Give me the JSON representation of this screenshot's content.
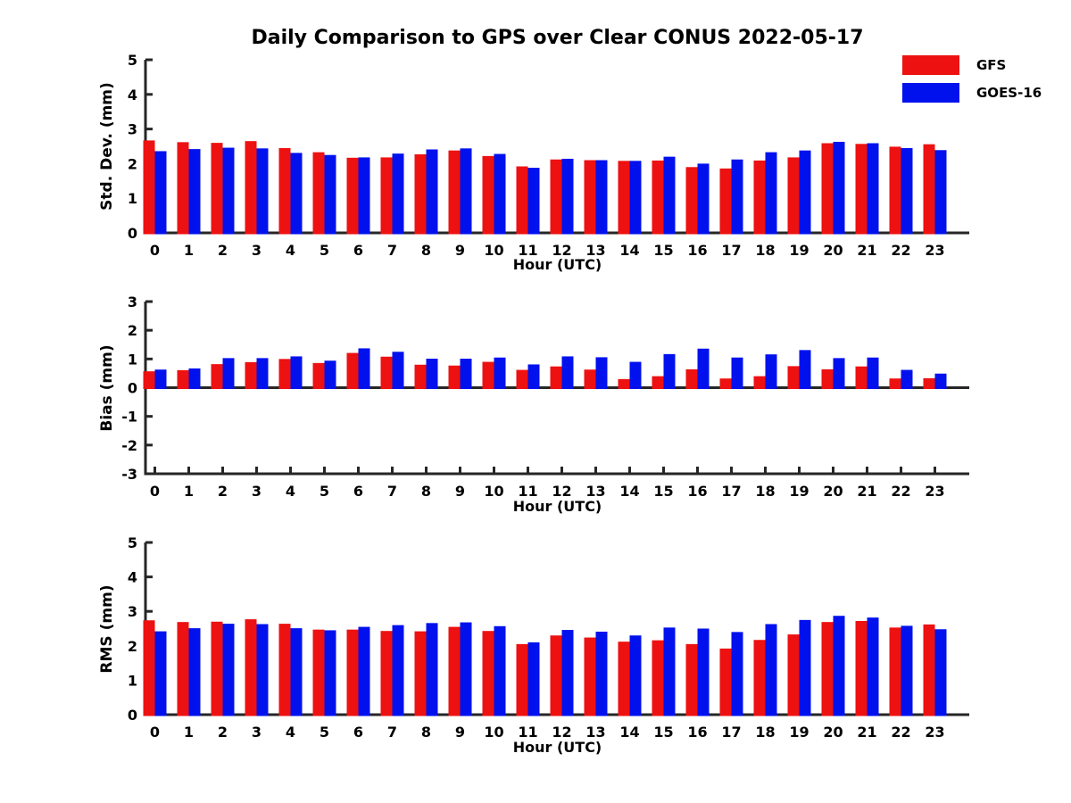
{
  "title": "Daily Comparison to GPS over Clear CONUS 2022-05-17",
  "colors": {
    "gfs_red": "#ee1111",
    "goes_blue": "#0011ee",
    "axis": "#262626",
    "text": "#000000",
    "background": "#ffffff"
  },
  "legend": {
    "items": [
      {
        "label": "GFS",
        "color": "#ee1111"
      },
      {
        "label": "GOES-16",
        "color": "#0011ee"
      }
    ]
  },
  "chart_data": [
    {
      "type": "bar",
      "title": "",
      "ylabel": "Std. Dev. (mm)",
      "xlabel": "Hour (UTC)",
      "ylim": [
        0,
        5
      ],
      "yticks": [
        0,
        1,
        2,
        3,
        4,
        5
      ],
      "grid": false,
      "legend_position": "top-right",
      "categories": [
        "0",
        "1",
        "2",
        "3",
        "4",
        "5",
        "6",
        "7",
        "8",
        "9",
        "10",
        "11",
        "12",
        "13",
        "14",
        "15",
        "16",
        "17",
        "18",
        "19",
        "20",
        "21",
        "22",
        "23"
      ],
      "series": [
        {
          "name": "GFS",
          "color": "#ee1111",
          "values": [
            2.67,
            2.62,
            2.6,
            2.65,
            2.45,
            2.33,
            2.17,
            2.18,
            2.27,
            2.38,
            2.22,
            1.92,
            2.12,
            2.1,
            2.08,
            2.09,
            1.9,
            1.86,
            2.09,
            2.18,
            2.59,
            2.57,
            2.49,
            2.56
          ]
        },
        {
          "name": "GOES-16",
          "color": "#0011ee",
          "values": [
            2.36,
            2.42,
            2.46,
            2.44,
            2.31,
            2.25,
            2.18,
            2.29,
            2.41,
            2.44,
            2.28,
            1.88,
            2.14,
            2.1,
            2.08,
            2.2,
            2.0,
            2.12,
            2.33,
            2.38,
            2.63,
            2.59,
            2.45,
            2.39
          ]
        }
      ]
    },
    {
      "type": "bar",
      "title": "",
      "ylabel": "Bias (mm)",
      "xlabel": "Hour (UTC)",
      "ylim": [
        -3,
        3
      ],
      "yticks": [
        -3,
        -2,
        -1,
        0,
        1,
        2,
        3
      ],
      "grid": false,
      "legend_position": "none",
      "categories": [
        "0",
        "1",
        "2",
        "3",
        "4",
        "5",
        "6",
        "7",
        "8",
        "9",
        "10",
        "11",
        "12",
        "13",
        "14",
        "15",
        "16",
        "17",
        "18",
        "19",
        "20",
        "21",
        "22",
        "23"
      ],
      "series": [
        {
          "name": "GFS",
          "color": "#ee1111",
          "values": [
            0.57,
            0.61,
            0.82,
            0.89,
            1.0,
            0.86,
            1.21,
            1.08,
            0.8,
            0.77,
            0.9,
            0.62,
            0.74,
            0.63,
            0.3,
            0.4,
            0.64,
            0.32,
            0.4,
            0.75,
            0.64,
            0.74,
            0.32,
            0.33
          ]
        },
        {
          "name": "GOES-16",
          "color": "#0011ee",
          "values": [
            0.63,
            0.67,
            1.03,
            1.03,
            1.09,
            0.94,
            1.37,
            1.25,
            1.01,
            1.01,
            1.05,
            0.81,
            1.09,
            1.06,
            0.9,
            1.17,
            1.36,
            1.05,
            1.16,
            1.31,
            1.03,
            1.05,
            0.62,
            0.49
          ]
        }
      ]
    },
    {
      "type": "bar",
      "title": "",
      "ylabel": "RMS (mm)",
      "xlabel": "Hour (UTC)",
      "ylim": [
        0,
        5
      ],
      "yticks": [
        0,
        1,
        2,
        3,
        4,
        5
      ],
      "grid": false,
      "legend_position": "none",
      "categories": [
        "0",
        "1",
        "2",
        "3",
        "4",
        "5",
        "6",
        "7",
        "8",
        "9",
        "10",
        "11",
        "12",
        "13",
        "14",
        "15",
        "16",
        "17",
        "18",
        "19",
        "20",
        "21",
        "22",
        "23"
      ],
      "series": [
        {
          "name": "GFS",
          "color": "#ee1111",
          "values": [
            2.74,
            2.69,
            2.7,
            2.77,
            2.64,
            2.47,
            2.47,
            2.43,
            2.42,
            2.55,
            2.43,
            2.05,
            2.3,
            2.24,
            2.12,
            2.16,
            2.05,
            1.92,
            2.17,
            2.33,
            2.69,
            2.72,
            2.53,
            2.62
          ]
        },
        {
          "name": "GOES-16",
          "color": "#0011ee",
          "values": [
            2.42,
            2.51,
            2.64,
            2.63,
            2.51,
            2.45,
            2.55,
            2.6,
            2.66,
            2.68,
            2.57,
            2.1,
            2.46,
            2.41,
            2.3,
            2.53,
            2.5,
            2.4,
            2.63,
            2.75,
            2.87,
            2.82,
            2.58,
            2.48
          ]
        }
      ]
    }
  ]
}
